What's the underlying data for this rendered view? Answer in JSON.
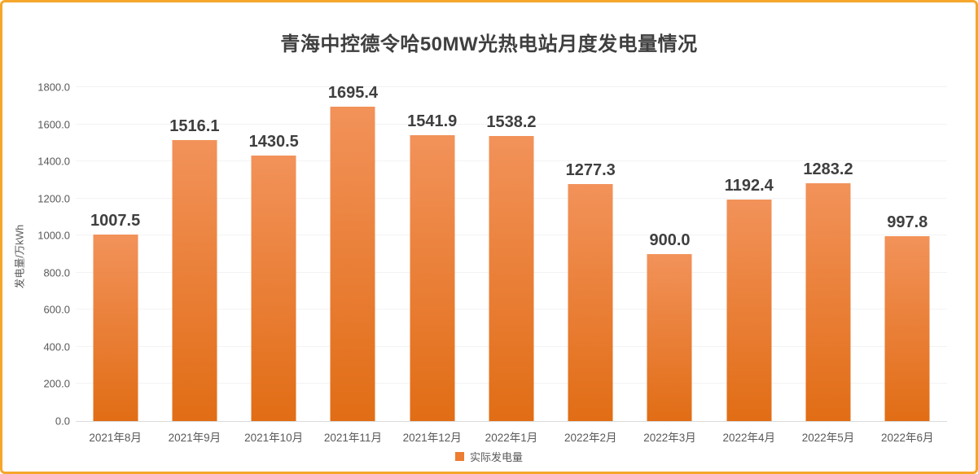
{
  "frame": {
    "border_color": "#F5A62B",
    "background": "#FFFFFF"
  },
  "chart_data": {
    "type": "bar",
    "title": "青海中控德令哈50MW光热电站月度发电量情况",
    "xlabel": "",
    "ylabel": "发电量/万kWh",
    "categories": [
      "2021年8月",
      "2021年9月",
      "2021年10月",
      "2021年11月",
      "2021年12月",
      "2022年1月",
      "2022年2月",
      "2022年3月",
      "2022年4月",
      "2022年5月",
      "2022年6月"
    ],
    "series": [
      {
        "name": "实际发电量",
        "values": [
          1007.5,
          1516.1,
          1430.5,
          1695.4,
          1541.9,
          1538.2,
          1277.3,
          900.0,
          1192.4,
          1283.2,
          997.8
        ]
      }
    ],
    "ylim": [
      0,
      1800
    ],
    "ytick_step": 200,
    "ytick_decimals": 1,
    "value_label_decimals": 1,
    "grid": true,
    "legend_position": "bottom",
    "colors": {
      "bar_gradient_top": "#F2925A",
      "bar_gradient_bottom": "#E16D15",
      "legend_marker": "#ED7D31",
      "title_text": "#3F3F3F",
      "axis_text": "#595959",
      "gridline": "#F3F3F3",
      "baseline": "#DBDBDB"
    }
  }
}
